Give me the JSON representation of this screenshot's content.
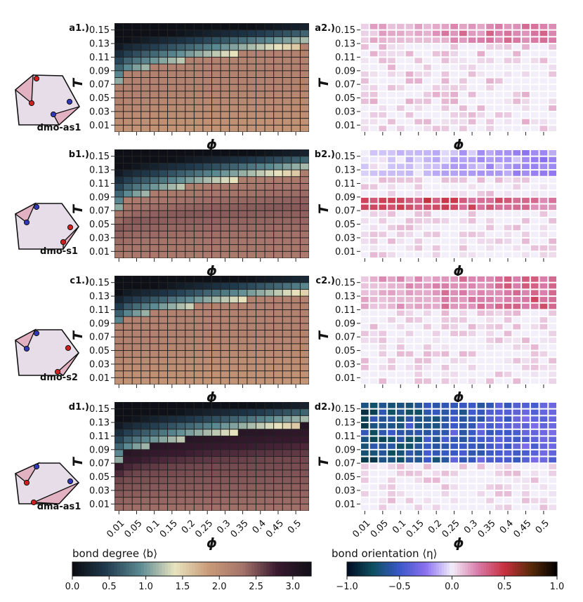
{
  "colors": {
    "degree_map": [
      "#0b0b10",
      "#203a4e",
      "#5c8a92",
      "#e8e4c0",
      "#c99a78",
      "#a4736a",
      "#3a1a30",
      "#101018"
    ],
    "orient_map": [
      "#020c22",
      "#0e5060",
      "#3a58c8",
      "#8b70f0",
      "#f2eefa",
      "#d87aa8",
      "#c83040",
      "#5a2a08",
      "#000000"
    ],
    "shape_fill": "#e6dde8",
    "triangle_fill": "#e3b2c2",
    "site_red": "#d21e1e",
    "site_blue": "#3038b8"
  },
  "chart_data": {
    "type": "heatmap",
    "x_variable": "φ",
    "y_variable": "T",
    "x_tick_labels": [
      "0.01",
      "0.05",
      "0.1",
      "0.15",
      "0.2",
      "0.25",
      "0.3",
      "0.35",
      "0.4",
      "0.45",
      "0.5"
    ],
    "y_tick_labels": [
      "0.15",
      "0.13",
      "0.11",
      "0.09",
      "0.07",
      "0.05",
      "0.03",
      "0.01"
    ],
    "x_range": [
      0.01,
      0.55
    ],
    "y_range": [
      0.01,
      0.16
    ],
    "grid_cols": 22,
    "grid_rows": 16,
    "panels": [
      {
        "label": "a1.)",
        "row": 0,
        "quantity": "bond degree",
        "low": 1.0,
        "low_top": 0.5,
        "mid": 2.15,
        "mid_top": 2.15,
        "boundary_start": 0.08,
        "boundary_end": 0.128,
        "band": null
      },
      {
        "label": "b1.)",
        "row": 1,
        "quantity": "bond degree",
        "low": 1.0,
        "low_top": 0.5,
        "mid": 2.45,
        "mid_top": 2.2,
        "boundary_start": 0.08,
        "boundary_end": 0.128,
        "band": null
      },
      {
        "label": "c1.)",
        "row": 2,
        "quantity": "bond degree",
        "low": 1.0,
        "low_top": 0.5,
        "mid": 2.15,
        "mid_top": 2.15,
        "boundary_start": 0.09,
        "boundary_end": 0.135,
        "band": null
      },
      {
        "label": "d1.)",
        "row": 3,
        "quantity": "bond degree",
        "low": 1.0,
        "low_top": 0.5,
        "mid": 2.55,
        "mid_top": 3.0,
        "boundary_start": 0.08,
        "boundary_end": 0.128,
        "band": null
      },
      {
        "label": "a2.)",
        "row": 0,
        "quantity": "bond orientation",
        "base": 0.02,
        "noise": 0.12,
        "sign": 1,
        "band": {
          "T_low": 0.135,
          "T_high": 0.16,
          "amp": 0.25,
          "grow": true
        }
      },
      {
        "label": "b2.)",
        "row": 1,
        "quantity": "bond orientation",
        "base": 0.02,
        "noise": 0.1,
        "sign": 1,
        "band": {
          "T_low": 0.08,
          "T_high": 0.095,
          "amp": 0.45,
          "grow": false
        },
        "band2": {
          "T_low": 0.12,
          "T_high": 0.16,
          "amp": -0.25,
          "grow": true
        }
      },
      {
        "label": "c2.)",
        "row": 2,
        "quantity": "bond orientation",
        "base": 0.02,
        "noise": 0.1,
        "sign": 1,
        "band": {
          "T_low": 0.11,
          "T_high": 0.16,
          "amp": 0.3,
          "grow": true
        }
      },
      {
        "label": "d2.)",
        "row": 3,
        "quantity": "bond orientation",
        "base": 0.02,
        "noise": 0.1,
        "sign": 1,
        "band": {
          "T_low": 0.08,
          "T_high": 0.16,
          "amp": -0.8,
          "grow": false
        }
      }
    ],
    "glyph_labels": [
      "dmo-as1",
      "dmo-s1",
      "dmo-s2",
      "dma-as1"
    ],
    "colorbars": [
      {
        "label": "bond degree ⟨b⟩",
        "ticks": [
          "0.0",
          "0.5",
          "1.0",
          "1.5",
          "2.0",
          "2.5",
          "3.0"
        ],
        "range": [
          0.0,
          3.25
        ]
      },
      {
        "label": "bond orientation ⟨η⟩",
        "ticks": [
          "−1.0",
          "−0.5",
          "0.0",
          "0.5",
          "1.0"
        ],
        "range": [
          -1.0,
          1.0
        ]
      }
    ],
    "axis_symbol_x": "ϕ",
    "axis_symbol_y": "T"
  }
}
